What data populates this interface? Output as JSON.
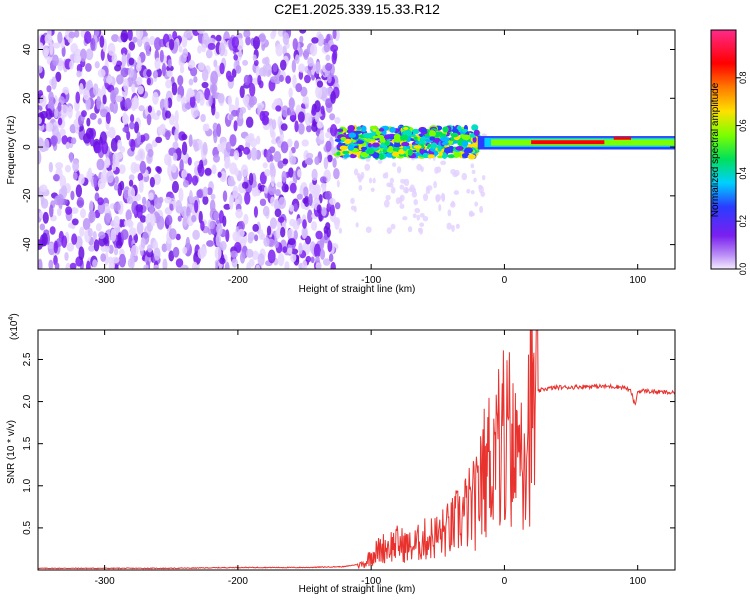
{
  "title": "C2E1.2025.339.15.33.R12",
  "chart_data": [
    {
      "type": "heatmap",
      "xlabel": "Height of straight line (km)",
      "ylabel": "Frequency (Hz)",
      "xlim": [
        -350,
        128
      ],
      "ylim": [
        -50,
        48
      ],
      "xticks": [
        -300,
        -200,
        -100,
        0,
        100
      ],
      "yticks": [
        -40,
        -20,
        0,
        20,
        40
      ],
      "colorbar": {
        "label": "Normalized spectral amplitude",
        "range": [
          0,
          1
        ],
        "ticks": [
          "0.0",
          "0.2",
          "0.4",
          "0.6",
          "0.8"
        ],
        "colormap": [
          "#ffffff",
          "#7a1ff0",
          "#2a3cff",
          "#00d0ff",
          "#00e05a",
          "#7cff00",
          "#ffe000",
          "#ff7a00",
          "#ff0000",
          "#ff2a8a"
        ]
      },
      "regions": [
        {
          "x": [
            -350,
            -125
          ],
          "freq": [
            -50,
            48
          ],
          "description": "broadband noise, amplitude 0.05-0.25"
        },
        {
          "x": [
            -125,
            -20
          ],
          "freq": [
            -6,
            10
          ],
          "description": "signal band around 0-5 Hz, amplitude 0.3-0.6"
        },
        {
          "x": [
            -20,
            128
          ],
          "freq": [
            0,
            4
          ],
          "description": "narrow carrier near 2 Hz, amplitude 0.8-1.0"
        }
      ]
    },
    {
      "type": "line",
      "xlabel": "Height of straight line (km)",
      "ylabel": "SNR (10 * v/v)",
      "yscale_label": "(x10",
      "yscale_exp": "4",
      "yscale_close": ")",
      "xlim": [
        -350,
        128
      ],
      "ylim": [
        0,
        2.85
      ],
      "xticks": [
        -300,
        -200,
        -100,
        0,
        100
      ],
      "yticks": [
        "0.5",
        "1.0",
        "1.5",
        "2.0",
        "2.5"
      ],
      "ytick_values": [
        0.5,
        1.0,
        1.5,
        2.0,
        2.5
      ],
      "series": [
        {
          "color": "#e8322e",
          "x": [
            -350,
            -300,
            -250,
            -200,
            -150,
            -120,
            -105,
            -100,
            -90,
            -80,
            -70,
            -60,
            -50,
            -40,
            -30,
            -20,
            -15,
            -10,
            -5,
            0,
            5,
            10,
            15,
            20,
            25,
            30,
            40,
            50,
            60,
            70,
            80,
            90,
            95,
            98,
            100,
            105,
            110,
            120,
            128
          ],
          "y": [
            0.02,
            0.02,
            0.02,
            0.03,
            0.03,
            0.04,
            0.08,
            0.2,
            0.3,
            0.35,
            0.3,
            0.4,
            0.45,
            0.55,
            0.75,
            0.9,
            1.3,
            1.5,
            1.7,
            1.6,
            1.4,
            1.6,
            1.9,
            2.05,
            2.12,
            2.15,
            2.17,
            2.17,
            2.18,
            2.18,
            2.18,
            2.17,
            2.12,
            1.95,
            2.12,
            2.13,
            2.12,
            2.11,
            2.1
          ]
        }
      ]
    }
  ]
}
